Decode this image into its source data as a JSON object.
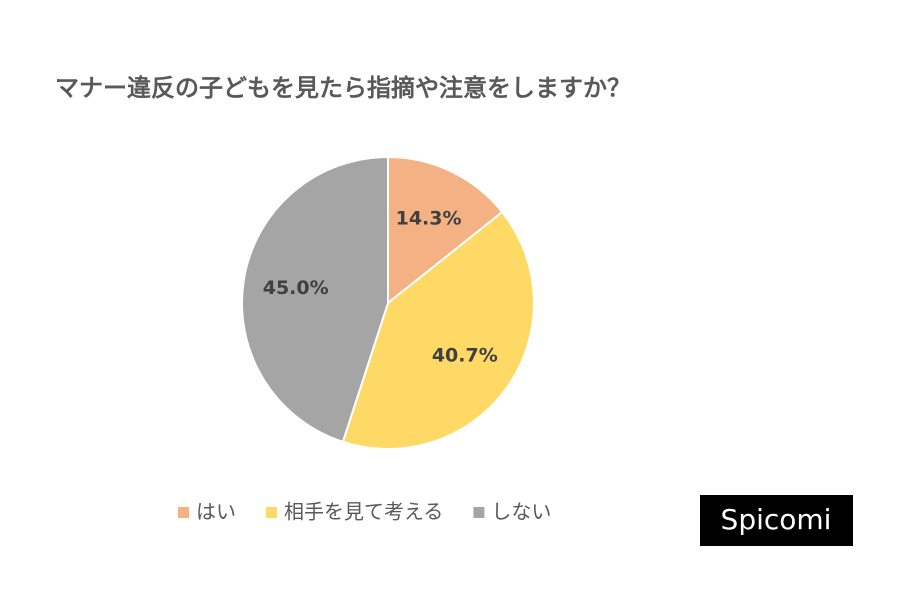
{
  "chart_data": {
    "type": "pie",
    "title": "マナー違反の子どもを見たら指摘や注意をしますか？",
    "categories": [
      "はい",
      "相手を見て考える",
      "しない"
    ],
    "values": [
      14.3,
      40.7,
      45.0
    ],
    "value_labels": [
      "14.3%",
      "40.7%",
      "45.0%"
    ],
    "colors": [
      "#f4b183",
      "#ffd966",
      "#a5a5a5"
    ],
    "legend": "bottom",
    "watermark": "Spicomi"
  }
}
